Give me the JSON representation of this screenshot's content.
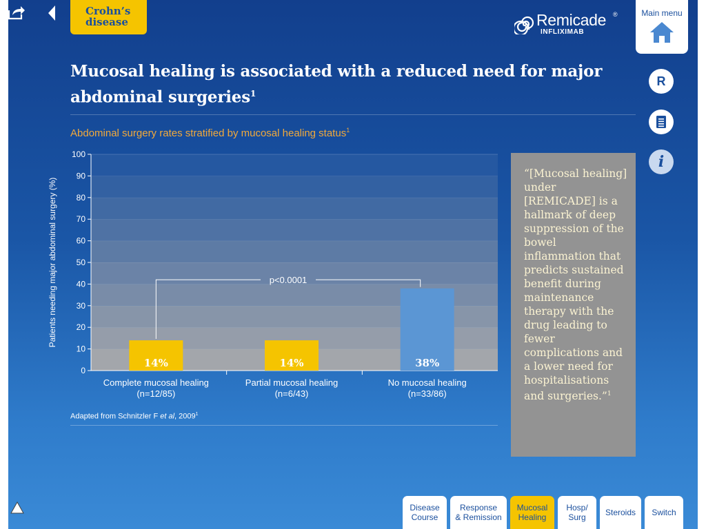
{
  "header": {
    "section_tab": "Crohn’s disease",
    "logo_name": "Remicade",
    "logo_mark": "®",
    "logo_sub": "INFLIXIMAB",
    "main_menu_label": "Main menu"
  },
  "side_buttons": {
    "r_label": "R",
    "info_label": "i"
  },
  "content": {
    "title": "Mucosal healing is associated with a reduced need for major abdominal surgeries",
    "title_ref": "1",
    "subtitle": "Abdominal surgery rates stratified by mucosal healing status",
    "subtitle_ref": "1",
    "source_prefix": "Adapted from Schnitzler F ",
    "source_etal": "et al",
    "source_suffix": ", 2009",
    "source_ref": "1"
  },
  "quote": {
    "text": "“[Mucosal healing] under [REMICADE] is a hallmark of deep suppression of the bowel inflammation that predicts sustained benefit during maintenance therapy with the drug leading to fewer complications and a lower need for hospitalisations and surgeries.”",
    "ref": "1"
  },
  "chart_data": {
    "type": "bar",
    "title": "",
    "ylabel": "Patients needing major abdominal surgery (%)",
    "ylim": [
      0,
      100
    ],
    "yticks": [
      0,
      10,
      20,
      30,
      40,
      50,
      60,
      70,
      80,
      90,
      100
    ],
    "categories": [
      {
        "name": "Complete mucosal healing",
        "n": "(n=12/85)"
      },
      {
        "name": "Partial mucosal healing",
        "n": "(n=6/43)"
      },
      {
        "name": "No mucosal healing",
        "n": "(n=33/86)"
      }
    ],
    "values": [
      14,
      14,
      38
    ],
    "labels": [
      "14%",
      "14%",
      "38%"
    ],
    "colors": [
      "#f5c400",
      "#f5c400",
      "#5b96d4"
    ],
    "annotation": "p<0.0001",
    "grid": true
  },
  "bottom_tabs": [
    {
      "label": "Disease\nCourse",
      "active": false
    },
    {
      "label": "Response\n& Remission",
      "active": false
    },
    {
      "label": "Mucosal\nHealing",
      "active": true
    },
    {
      "label": "Hosp/\nSurg",
      "active": false
    },
    {
      "label": "Steroids",
      "active": false
    },
    {
      "label": "Switch",
      "active": false
    }
  ],
  "colors": {
    "accent_yellow": "#f5c400",
    "brand_blue": "#1a4f9d",
    "subtitle_orange": "#f2a93b",
    "quote_bg": "#939393"
  }
}
